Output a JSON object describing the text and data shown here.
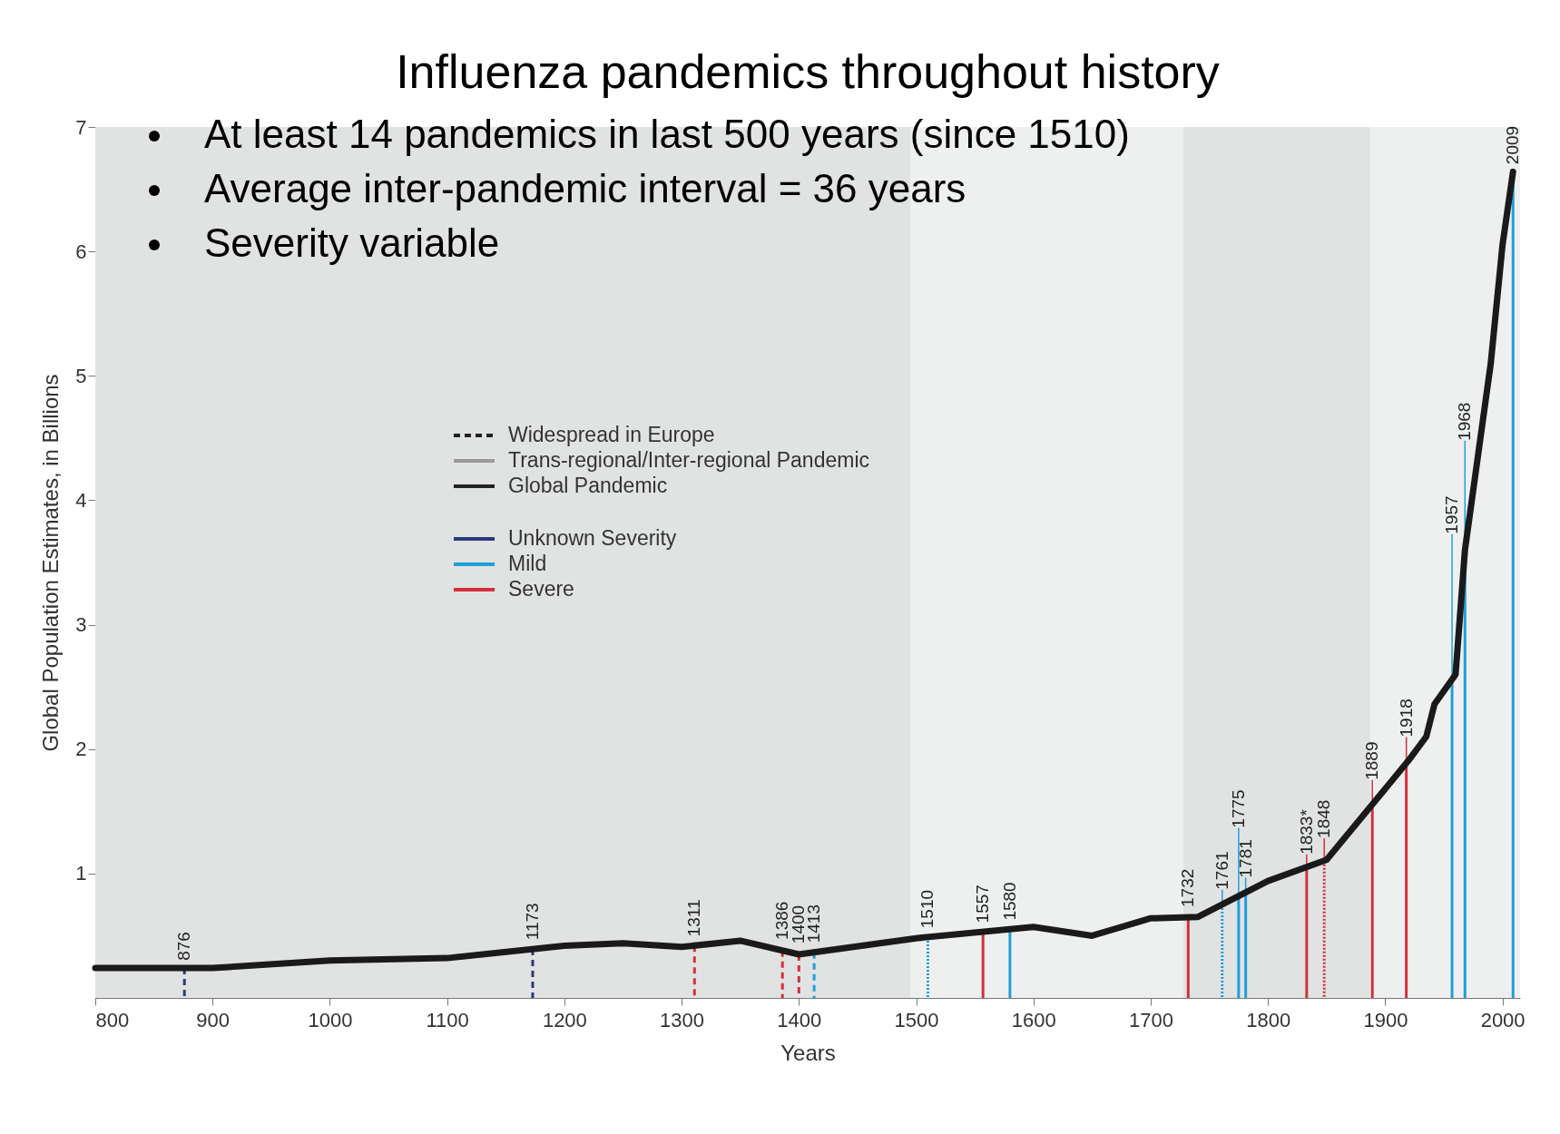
{
  "chart_data": {
    "type": "line",
    "title": "Influenza pandemics throughout history",
    "xlabel": "Years",
    "ylabel": "Global Population Estimates, in Billions",
    "series": [
      {
        "type": "line",
        "color": "#1a1a1a",
        "x": [
          800,
          900,
          1000,
          1100,
          1200,
          1250,
          1300,
          1350,
          1400,
          1500,
          1600,
          1650,
          1700,
          1740,
          1800,
          1850,
          1900,
          1920,
          1935,
          1942,
          1960,
          1968,
          1990,
          2000,
          2009
        ],
        "values": [
          0.24,
          0.24,
          0.3,
          0.32,
          0.42,
          0.44,
          0.41,
          0.46,
          0.35,
          0.48,
          0.57,
          0.5,
          0.64,
          0.65,
          0.94,
          1.11,
          1.68,
          1.91,
          2.1,
          2.36,
          2.6,
          3.6,
          5.1,
          6.05,
          6.64
        ]
      }
    ],
    "xlim": [
      800,
      2015
    ],
    "xticks": [
      800,
      900,
      1000,
      1100,
      1200,
      1300,
      1400,
      1500,
      1600,
      1700,
      1800,
      1900,
      2000
    ],
    "ylim": [
      0,
      7
    ],
    "yticks": [
      1,
      2,
      3,
      4,
      5,
      6,
      7
    ],
    "grid": false,
    "bands": [
      {
        "axis": "x",
        "from": 800,
        "to": 1495,
        "color": "#e1e3e3"
      },
      {
        "axis": "x",
        "from": 1728,
        "to": 1887,
        "color": "#e1e3e3"
      }
    ],
    "ref_lines": [
      {
        "axis": "x",
        "value": 876,
        "label": "876",
        "color": "#2b3a78",
        "line_style": "dashed"
      },
      {
        "axis": "x",
        "value": 1173,
        "label": "1173",
        "color": "#2b3a78",
        "line_style": "dashed"
      },
      {
        "axis": "x",
        "value": 1311,
        "label": "1311",
        "color": "#d4303c",
        "line_style": "dashed"
      },
      {
        "axis": "x",
        "value": 1386,
        "label": "1386",
        "color": "#d4303c",
        "line_style": "dashed"
      },
      {
        "axis": "x",
        "value": 1400,
        "label": "1400",
        "color": "#d4303c",
        "line_style": "dashed"
      },
      {
        "axis": "x",
        "value": 1413,
        "label": "1413",
        "color": "#1f9fd8",
        "line_style": "dashed"
      },
      {
        "axis": "x",
        "value": 1510,
        "label": "1510",
        "color": "#1f9fd8",
        "line_style": "dotted"
      },
      {
        "axis": "x",
        "value": 1557,
        "label": "1557",
        "color": "#d4303c",
        "line_style": "solid"
      },
      {
        "axis": "x",
        "value": 1580,
        "label": "1580",
        "color": "#1f9fd8",
        "line_style": "solid"
      },
      {
        "axis": "x",
        "value": 1732,
        "label": "1732",
        "color": "#d4303c",
        "line_style": "solid"
      },
      {
        "axis": "x",
        "value": 1761,
        "label": "1761",
        "color": "#1f9fd8",
        "line_style": "dotted"
      },
      {
        "axis": "x",
        "value": 1775,
        "label": "1775",
        "color": "#1f9fd8",
        "line_style": "solid"
      },
      {
        "axis": "x",
        "value": 1781,
        "label": "1781",
        "color": "#1f9fd8",
        "line_style": "solid"
      },
      {
        "axis": "x",
        "value": 1833,
        "label": "1833*",
        "color": "#d4303c",
        "line_style": "solid"
      },
      {
        "axis": "x",
        "value": 1848,
        "label": "1848",
        "color": "#d4303c",
        "line_style": "dotted"
      },
      {
        "axis": "x",
        "value": 1889,
        "label": "1889",
        "color": "#d4303c",
        "line_style": "solid"
      },
      {
        "axis": "x",
        "value": 1918,
        "label": "1918",
        "color": "#d4303c",
        "line_style": "solid"
      },
      {
        "axis": "x",
        "value": 1957,
        "label": "1957",
        "color": "#1f9fd8",
        "line_style": "solid"
      },
      {
        "axis": "x",
        "value": 1968,
        "label": "1968",
        "color": "#1f9fd8",
        "line_style": "solid"
      },
      {
        "axis": "x",
        "value": 2009,
        "label": "2009",
        "color": "#1f9fd8",
        "line_style": "solid"
      }
    ],
    "annotations": [
      "At least 14 pandemics in last 500 years (since 1510)",
      "Average inter-pandemic interval  = 36 years",
      "Severity variable",
      "Widespread in Europe",
      "Trans-regional/Inter-regional Pandemic",
      "Global Pandemic",
      "Unknown Severity",
      "Mild",
      "Severe"
    ]
  }
}
